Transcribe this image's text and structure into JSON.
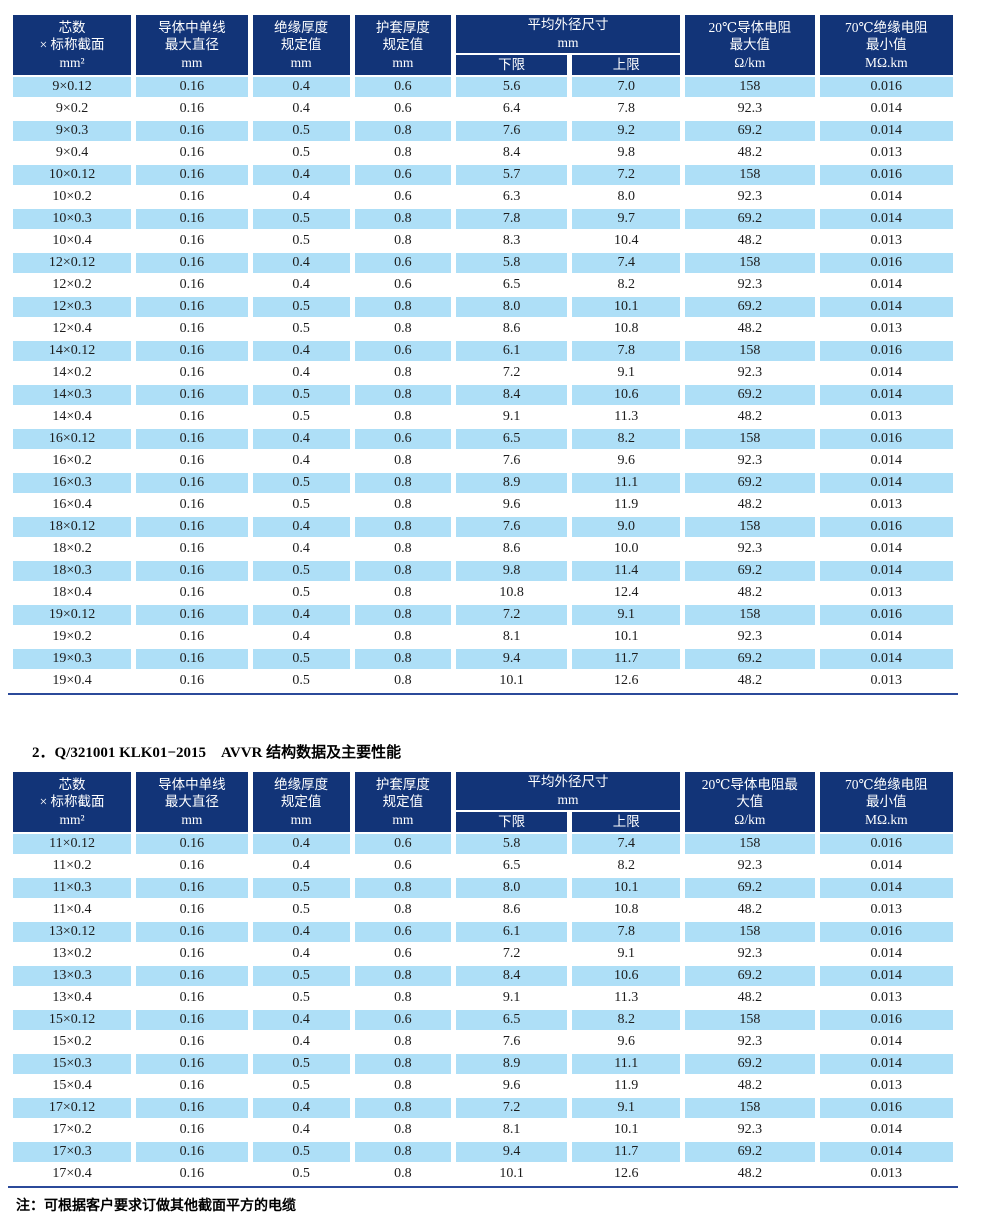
{
  "colors": {
    "header_bg": "#123478",
    "stripe": "#aedff7",
    "rule": "#2b4a9a",
    "header_text": "#ffffff",
    "body_text": "#1c1c1c"
  },
  "section2_title": "2．Q/321001 KLK01−2015　AVVR 结构数据及主要性能",
  "note": "注：可根据客户要求订做其他截面平方的电缆",
  "table1": {
    "header": {
      "core_count": "芯数\n× 标称截面\nmm²",
      "conductor_dia": "导体中单线\n最大直径\nmm",
      "insulation": "绝缘厚度\n规定值\nmm",
      "sheath": "护套厚度\n规定值\nmm",
      "od_group": "平均外径尺寸\nmm",
      "od_lower": "下限",
      "od_upper": "上限",
      "resistance": "20℃导体电阻\n最大值\nΩ/km",
      "insulation_res": "70℃绝缘电阻\n最小值\nMΩ.km"
    },
    "rows": [
      [
        "9×0.12",
        "0.16",
        "0.4",
        "0.6",
        "5.6",
        "7.0",
        "158",
        "0.016"
      ],
      [
        "9×0.2",
        "0.16",
        "0.4",
        "0.6",
        "6.4",
        "7.8",
        "92.3",
        "0.014"
      ],
      [
        "9×0.3",
        "0.16",
        "0.5",
        "0.8",
        "7.6",
        "9.2",
        "69.2",
        "0.014"
      ],
      [
        "9×0.4",
        "0.16",
        "0.5",
        "0.8",
        "8.4",
        "9.8",
        "48.2",
        "0.013"
      ],
      [
        "10×0.12",
        "0.16",
        "0.4",
        "0.6",
        "5.7",
        "7.2",
        "158",
        "0.016"
      ],
      [
        "10×0.2",
        "0.16",
        "0.4",
        "0.6",
        "6.3",
        "8.0",
        "92.3",
        "0.014"
      ],
      [
        "10×0.3",
        "0.16",
        "0.5",
        "0.8",
        "7.8",
        "9.7",
        "69.2",
        "0.014"
      ],
      [
        "10×0.4",
        "0.16",
        "0.5",
        "0.8",
        "8.3",
        "10.4",
        "48.2",
        "0.013"
      ],
      [
        "12×0.12",
        "0.16",
        "0.4",
        "0.6",
        "5.8",
        "7.4",
        "158",
        "0.016"
      ],
      [
        "12×0.2",
        "0.16",
        "0.4",
        "0.6",
        "6.5",
        "8.2",
        "92.3",
        "0.014"
      ],
      [
        "12×0.3",
        "0.16",
        "0.5",
        "0.8",
        "8.0",
        "10.1",
        "69.2",
        "0.014"
      ],
      [
        "12×0.4",
        "0.16",
        "0.5",
        "0.8",
        "8.6",
        "10.8",
        "48.2",
        "0.013"
      ],
      [
        "14×0.12",
        "0.16",
        "0.4",
        "0.6",
        "6.1",
        "7.8",
        "158",
        "0.016"
      ],
      [
        "14×0.2",
        "0.16",
        "0.4",
        "0.8",
        "7.2",
        "9.1",
        "92.3",
        "0.014"
      ],
      [
        "14×0.3",
        "0.16",
        "0.5",
        "0.8",
        "8.4",
        "10.6",
        "69.2",
        "0.014"
      ],
      [
        "14×0.4",
        "0.16",
        "0.5",
        "0.8",
        "9.1",
        "11.3",
        "48.2",
        "0.013"
      ],
      [
        "16×0.12",
        "0.16",
        "0.4",
        "0.6",
        "6.5",
        "8.2",
        "158",
        "0.016"
      ],
      [
        "16×0.2",
        "0.16",
        "0.4",
        "0.8",
        "7.6",
        "9.6",
        "92.3",
        "0.014"
      ],
      [
        "16×0.3",
        "0.16",
        "0.5",
        "0.8",
        "8.9",
        "11.1",
        "69.2",
        "0.014"
      ],
      [
        "16×0.4",
        "0.16",
        "0.5",
        "0.8",
        "9.6",
        "11.9",
        "48.2",
        "0.013"
      ],
      [
        "18×0.12",
        "0.16",
        "0.4",
        "0.8",
        "7.6",
        "9.0",
        "158",
        "0.016"
      ],
      [
        "18×0.2",
        "0.16",
        "0.4",
        "0.8",
        "8.6",
        "10.0",
        "92.3",
        "0.014"
      ],
      [
        "18×0.3",
        "0.16",
        "0.5",
        "0.8",
        "9.8",
        "11.4",
        "69.2",
        "0.014"
      ],
      [
        "18×0.4",
        "0.16",
        "0.5",
        "0.8",
        "10.8",
        "12.4",
        "48.2",
        "0.013"
      ],
      [
        "19×0.12",
        "0.16",
        "0.4",
        "0.8",
        "7.2",
        "9.1",
        "158",
        "0.016"
      ],
      [
        "19×0.2",
        "0.16",
        "0.4",
        "0.8",
        "8.1",
        "10.1",
        "92.3",
        "0.014"
      ],
      [
        "19×0.3",
        "0.16",
        "0.5",
        "0.8",
        "9.4",
        "11.7",
        "69.2",
        "0.014"
      ],
      [
        "19×0.4",
        "0.16",
        "0.5",
        "0.8",
        "10.1",
        "12.6",
        "48.2",
        "0.013"
      ]
    ]
  },
  "table2": {
    "header": {
      "core_count": "芯数\n× 标称截面\nmm²",
      "conductor_dia": "导体中单线\n最大直径\nmm",
      "insulation": "绝缘厚度\n规定值\nmm",
      "sheath": "护套厚度\n规定值\nmm",
      "od_group": "平均外径尺寸\nmm",
      "od_lower": "下限",
      "od_upper": "上限",
      "resistance": "20℃导体电阻最\n大值\nΩ/km",
      "insulation_res": "70℃绝缘电阻\n最小值\nMΩ.km"
    },
    "rows": [
      [
        "11×0.12",
        "0.16",
        "0.4",
        "0.6",
        "5.8",
        "7.4",
        "158",
        "0.016"
      ],
      [
        "11×0.2",
        "0.16",
        "0.4",
        "0.6",
        "6.5",
        "8.2",
        "92.3",
        "0.014"
      ],
      [
        "11×0.3",
        "0.16",
        "0.5",
        "0.8",
        "8.0",
        "10.1",
        "69.2",
        "0.014"
      ],
      [
        "11×0.4",
        "0.16",
        "0.5",
        "0.8",
        "8.6",
        "10.8",
        "48.2",
        "0.013"
      ],
      [
        "13×0.12",
        "0.16",
        "0.4",
        "0.6",
        "6.1",
        "7.8",
        "158",
        "0.016"
      ],
      [
        "13×0.2",
        "0.16",
        "0.4",
        "0.6",
        "7.2",
        "9.1",
        "92.3",
        "0.014"
      ],
      [
        "13×0.3",
        "0.16",
        "0.5",
        "0.8",
        "8.4",
        "10.6",
        "69.2",
        "0.014"
      ],
      [
        "13×0.4",
        "0.16",
        "0.5",
        "0.8",
        "9.1",
        "11.3",
        "48.2",
        "0.013"
      ],
      [
        "15×0.12",
        "0.16",
        "0.4",
        "0.6",
        "6.5",
        "8.2",
        "158",
        "0.016"
      ],
      [
        "15×0.2",
        "0.16",
        "0.4",
        "0.8",
        "7.6",
        "9.6",
        "92.3",
        "0.014"
      ],
      [
        "15×0.3",
        "0.16",
        "0.5",
        "0.8",
        "8.9",
        "11.1",
        "69.2",
        "0.014"
      ],
      [
        "15×0.4",
        "0.16",
        "0.5",
        "0.8",
        "9.6",
        "11.9",
        "48.2",
        "0.013"
      ],
      [
        "17×0.12",
        "0.16",
        "0.4",
        "0.8",
        "7.2",
        "9.1",
        "158",
        "0.016"
      ],
      [
        "17×0.2",
        "0.16",
        "0.4",
        "0.8",
        "8.1",
        "10.1",
        "92.3",
        "0.014"
      ],
      [
        "17×0.3",
        "0.16",
        "0.5",
        "0.8",
        "9.4",
        "11.7",
        "69.2",
        "0.014"
      ],
      [
        "17×0.4",
        "0.16",
        "0.5",
        "0.8",
        "10.1",
        "12.6",
        "48.2",
        "0.013"
      ]
    ]
  }
}
